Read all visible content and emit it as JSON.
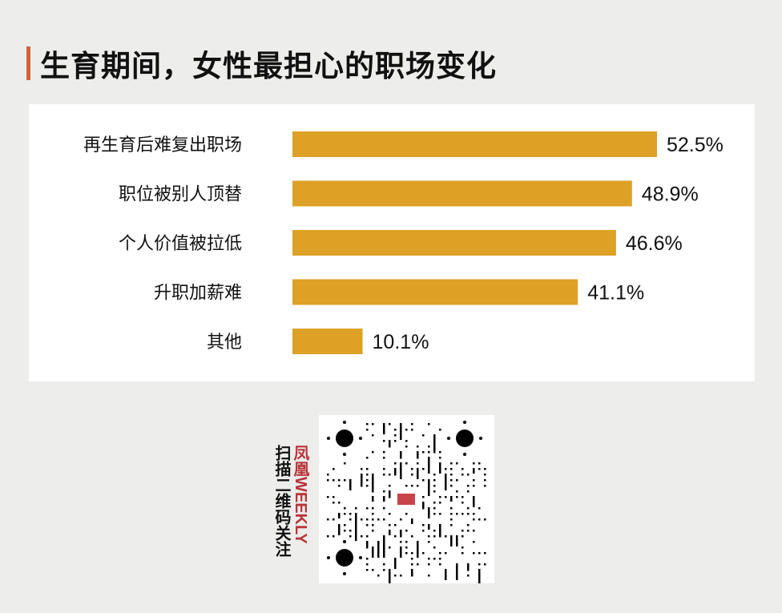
{
  "chart_data": {
    "type": "bar",
    "orientation": "horizontal",
    "title": "生育期间，女性最担心的职场变化",
    "categories": [
      "再生育后难复出职场",
      "职位被别人顶替",
      "个人价值被拉低",
      "升职加薪难",
      "其他"
    ],
    "values": [
      52.5,
      48.9,
      46.6,
      41.1,
      10.1
    ],
    "data_labels": [
      "52.5%",
      "48.9%",
      "46.6%",
      "41.1%",
      "10.1%"
    ],
    "unit": "%",
    "xlim": [
      0,
      60
    ],
    "grid": false,
    "bar_color": "#dda126",
    "accent_color": "#d0643a"
  },
  "footer": {
    "scan_text": "扫描二维码关注",
    "brand_cn": "凤凰",
    "brand_en": "WEEKLY",
    "brand_color": "#b8353a"
  }
}
